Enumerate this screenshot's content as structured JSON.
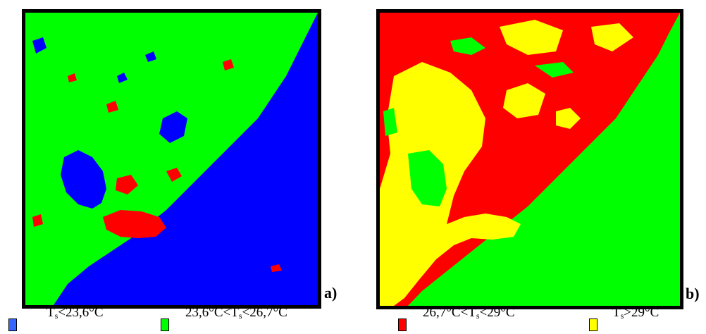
{
  "panels": [
    {
      "label": "a)"
    },
    {
      "label": "b)"
    }
  ],
  "legend": [
    {
      "pre": "T",
      "sub": "s",
      "post": "<23,6°C",
      "color": "#3366ff"
    },
    {
      "pre": "23,6°C<T",
      "sub": "s",
      "post": "<26,7°C",
      "color": "#00ff00"
    },
    {
      "pre": "26,7°C<T",
      "sub": "s",
      "post": "<29°C",
      "color": "#ff0000"
    },
    {
      "pre": "T",
      "sub": "s",
      "post": ">29°C",
      "color": "#ffff00"
    }
  ],
  "colors": {
    "cold_water": "#0000ff",
    "vegetation": "#00ff00",
    "warm": "#ff0000",
    "hot": "#ffff00"
  }
}
